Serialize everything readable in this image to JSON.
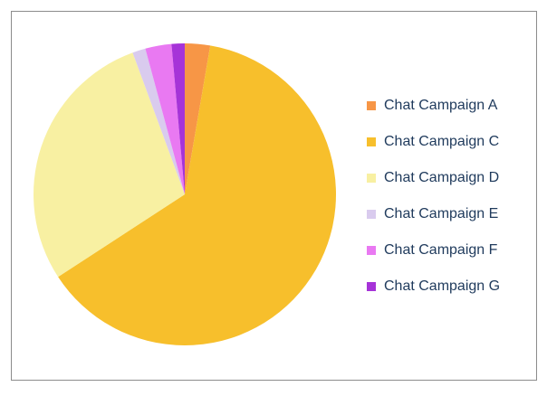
{
  "chart_data": {
    "type": "pie",
    "categories": [
      "Chat Campaign A",
      "Chat Campaign C",
      "Chat Campaign D",
      "Chat Campaign E",
      "Chat Campaign F",
      "Chat Campaign G"
    ],
    "values": [
      2.7,
      63.1,
      28.6,
      1.4,
      2.8,
      1.4
    ],
    "colors": [
      "#f79646",
      "#f7bf2c",
      "#f8f0a2",
      "#d9cbee",
      "#e979f2",
      "#a633d8"
    ],
    "legend": "right"
  }
}
